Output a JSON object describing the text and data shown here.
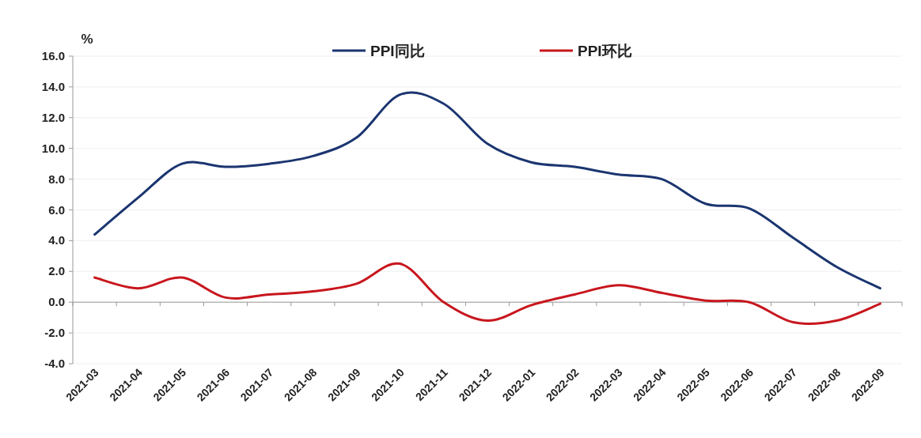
{
  "chart_data": {
    "type": "line",
    "ylabel": "%",
    "categories": [
      "2021-03",
      "2021-04",
      "2021-05",
      "2021-06",
      "2021-07",
      "2021-08",
      "2021-09",
      "2021-10",
      "2021-11",
      "2021-12",
      "2022-01",
      "2022-02",
      "2022-03",
      "2022-04",
      "2022-05",
      "2022-06",
      "2022-07",
      "2022-08",
      "2022-09"
    ],
    "series": [
      {
        "name": "PPI同比",
        "color": "#1b3570",
        "values": [
          4.4,
          6.8,
          9.0,
          8.8,
          9.0,
          9.5,
          10.7,
          13.5,
          12.9,
          10.3,
          9.1,
          8.8,
          8.3,
          8.0,
          6.4,
          6.1,
          4.2,
          2.3,
          0.9
        ]
      },
      {
        "name": "PPI环比",
        "color": "#c8161d",
        "values": [
          1.6,
          0.9,
          1.6,
          0.3,
          0.5,
          0.7,
          1.2,
          2.5,
          0.0,
          -1.2,
          -0.2,
          0.5,
          1.1,
          0.6,
          0.1,
          0.0,
          -1.3,
          -1.2,
          -0.1
        ]
      }
    ],
    "ylim": [
      -4,
      16
    ],
    "yticks": [
      {
        "value": -4,
        "label": "-4.0"
      },
      {
        "value": -2,
        "label": "-2.0"
      },
      {
        "value": 0,
        "label": "0.0"
      },
      {
        "value": 2,
        "label": "2.0"
      },
      {
        "value": 4,
        "label": "4.0"
      },
      {
        "value": 6,
        "label": "6.0"
      },
      {
        "value": 8,
        "label": "8.0"
      },
      {
        "value": 10,
        "label": "10.0"
      },
      {
        "value": 12,
        "label": "12.0"
      },
      {
        "value": 14,
        "label": "14.0"
      },
      {
        "value": 16,
        "label": "16.0"
      }
    ],
    "legend": "top",
    "grid": "y",
    "marker": "none",
    "line_style": "solid"
  }
}
